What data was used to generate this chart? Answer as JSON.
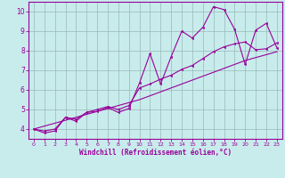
{
  "xlabel": "Windchill (Refroidissement éolien,°C)",
  "xlim": [
    -0.5,
    23.5
  ],
  "ylim": [
    3.5,
    10.5
  ],
  "yticks": [
    4,
    5,
    6,
    7,
    8,
    9,
    10
  ],
  "xticks": [
    0,
    1,
    2,
    3,
    4,
    5,
    6,
    7,
    8,
    9,
    10,
    11,
    12,
    13,
    14,
    15,
    16,
    17,
    18,
    19,
    20,
    21,
    22,
    23
  ],
  "bg_color": "#c8ecec",
  "line_color": "#990099",
  "grid_color": "#9ab8b8",
  "data_x": [
    0,
    1,
    2,
    3,
    4,
    5,
    6,
    7,
    8,
    9,
    10,
    11,
    12,
    13,
    14,
    15,
    16,
    17,
    18,
    19,
    20,
    21,
    22,
    23
  ],
  "data_y1": [
    4.0,
    3.8,
    3.9,
    4.6,
    4.4,
    4.85,
    4.9,
    5.1,
    4.85,
    5.05,
    6.35,
    7.85,
    6.3,
    7.7,
    9.0,
    8.65,
    9.2,
    10.25,
    10.1,
    9.1,
    7.3,
    9.05,
    9.4,
    8.15
  ],
  "data_y2": [
    4.0,
    3.9,
    4.0,
    4.6,
    4.5,
    4.85,
    5.0,
    5.15,
    5.0,
    5.2,
    6.1,
    6.3,
    6.55,
    6.75,
    7.05,
    7.25,
    7.6,
    7.95,
    8.2,
    8.35,
    8.45,
    8.05,
    8.1,
    8.4
  ],
  "data_y3": [
    4.0,
    4.15,
    4.3,
    4.45,
    4.6,
    4.75,
    4.9,
    5.05,
    5.2,
    5.35,
    5.5,
    5.7,
    5.9,
    6.1,
    6.3,
    6.5,
    6.7,
    6.9,
    7.1,
    7.3,
    7.5,
    7.65,
    7.8,
    7.95
  ]
}
